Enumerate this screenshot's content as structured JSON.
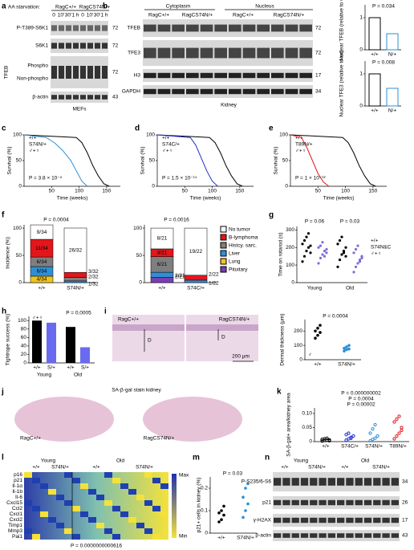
{
  "panel_labels": [
    "a",
    "b",
    "c",
    "d",
    "e",
    "f",
    "g",
    "h",
    "i",
    "j",
    "k",
    "l",
    "m",
    "n"
  ],
  "a": {
    "starvation": "AA starvation:",
    "groups": [
      "RagC+/+",
      "RagCS74N/+"
    ],
    "times": [
      "0",
      "10'",
      "30'",
      "1 h",
      "0",
      "10'",
      "30'",
      "1 h"
    ],
    "rows": [
      "P-T389-S6K1",
      "S6K1",
      "TFEB",
      "β-actin"
    ],
    "bands": [
      "Phospho",
      "Non-phospho"
    ],
    "mw": [
      "72",
      "72",
      "72",
      "43"
    ],
    "cell": "MEFs"
  },
  "b": {
    "fractions": [
      "Cytoplasm",
      "Nucleus"
    ],
    "groups": [
      "RagC+/+",
      "RagCS74N/+",
      "RagC+/+",
      "RagCS74N/+"
    ],
    "rows": [
      "TFEB",
      "TFE3",
      "H3",
      "GAPDH"
    ],
    "mw": [
      "72",
      "72",
      "17",
      "34"
    ],
    "tissue": "Kidney",
    "charts": [
      {
        "type": "bar",
        "y_label": "Nuclear TFEB (relative to wt)",
        "p": "P = 0.034",
        "categories": [
          "+/+",
          "N/+"
        ],
        "values": [
          1.0,
          0.5
        ],
        "colors": [
          "#000000",
          "#2b8fd6"
        ],
        "ylim": [
          0,
          1.4
        ],
        "yticks": [
          0,
          1
        ]
      },
      {
        "type": "bar",
        "y_label": "Nuclear TFE3 (relative to wt)",
        "p": "P = 0.008",
        "categories": [
          "+/+",
          "N/+"
        ],
        "values": [
          1.0,
          0.55
        ],
        "colors": [
          "#000000",
          "#2b8fd6"
        ],
        "ylim": [
          0,
          1.4
        ],
        "yticks": [
          0,
          1
        ]
      }
    ]
  },
  "survival": [
    {
      "type": "line",
      "y_label": "Survival (%)",
      "x_label": "Time (weeks)",
      "sex": "♂+♀",
      "p": "P = 3.8 × 10⁻⁵",
      "xlim": [
        0,
        175
      ],
      "xticks": [
        50,
        100,
        150
      ],
      "ylim": [
        0,
        100
      ],
      "yticks": [
        0,
        50,
        100
      ],
      "series": [
        {
          "name": "+/+",
          "color": "#000000",
          "x": [
            0,
            95,
            105,
            115,
            125,
            135,
            145,
            155
          ],
          "values": [
            100,
            95,
            85,
            65,
            40,
            20,
            5,
            0
          ]
        },
        {
          "name": "S74N/+",
          "color": "#2b8fd6",
          "x": [
            0,
            40,
            55,
            70,
            85,
            95,
            105,
            115
          ],
          "values": [
            100,
            95,
            85,
            70,
            50,
            30,
            10,
            0
          ]
        }
      ]
    },
    {
      "type": "line",
      "y_label": "Survival (%)",
      "x_label": "Time (weeks)",
      "sex": "♂+♀",
      "p": "P = 1.5 × 10⁻¹⁴",
      "xlim": [
        0,
        175
      ],
      "xticks": [
        50,
        100,
        150
      ],
      "ylim": [
        0,
        100
      ],
      "yticks": [
        0,
        50,
        100
      ],
      "series": [
        {
          "name": "+/+",
          "color": "#000000",
          "x": [
            0,
            95,
            105,
            115,
            125,
            135,
            145,
            155
          ],
          "values": [
            100,
            95,
            85,
            65,
            40,
            20,
            5,
            0
          ]
        },
        {
          "name": "S74C/+",
          "color": "#1f2fd0",
          "x": [
            0,
            60,
            70,
            80,
            90,
            100,
            110
          ],
          "values": [
            100,
            95,
            80,
            55,
            30,
            10,
            0
          ]
        }
      ]
    },
    {
      "type": "line",
      "y_label": "Survival (%)",
      "x_label": "Time (weeks)",
      "sex": "♂+♀",
      "p": "P = 1 × 10⁻¹²",
      "xlim": [
        0,
        175
      ],
      "xticks": [
        50,
        100,
        150
      ],
      "ylim": [
        0,
        100
      ],
      "yticks": [
        0,
        50,
        100
      ],
      "series": [
        {
          "name": "+/+",
          "color": "#000000",
          "x": [
            0,
            95,
            105,
            115,
            125,
            135,
            145,
            155
          ],
          "values": [
            100,
            95,
            85,
            65,
            40,
            20,
            5,
            0
          ]
        },
        {
          "name": "T89N/+",
          "color": "#e3161b",
          "x": [
            0,
            20,
            30,
            40,
            50,
            60,
            70
          ],
          "values": [
            100,
            95,
            75,
            50,
            25,
            8,
            0
          ]
        }
      ]
    }
  ],
  "f": {
    "y_label": "Incidence (%)",
    "charts": [
      {
        "type": "stacked-bar",
        "p": "P = 0.0004",
        "categories": [
          "+/+",
          "S74N/+"
        ],
        "ylim": [
          0,
          106
        ],
        "yticks": [
          0,
          50,
          100
        ],
        "series": [
          {
            "color": "#ffffff",
            "values": [
              26.5,
              81.3
            ],
            "value_labels": [
              "9/34",
              "26/32"
            ]
          },
          {
            "color": "#e3161b",
            "values": [
              32.4,
              9.4
            ],
            "value_labels": [
              "11/34",
              "3/32"
            ]
          },
          {
            "color": "#7f7f7f",
            "values": [
              17.6,
              6.3
            ],
            "value_labels": [
              "6/34",
              "2/32"
            ]
          },
          {
            "color": "#2f8fd6",
            "values": [
              17.6,
              3.1
            ],
            "value_labels": [
              "6/34",
              "1/32"
            ]
          },
          {
            "color": "#f2c418",
            "values": [
              11.8,
              null
            ],
            "value_labels": [
              "4/34",
              null
            ]
          },
          {
            "color": "#7a3fb0",
            "values": [
              null,
              null
            ],
            "value_labels": [
              null,
              null
            ]
          }
        ]
      },
      {
        "type": "stacked-bar",
        "p": "P = 0.0016",
        "categories": [
          "+/+",
          "S74C/+"
        ],
        "ylim": [
          0,
          106
        ],
        "yticks": [
          0,
          50,
          100
        ],
        "series": [
          {
            "name": "No tumor",
            "color": "#ffffff",
            "values": [
              38.1,
              86.4
            ],
            "value_labels": [
              "8/21",
              "19/22"
            ]
          },
          {
            "name": "B-lymphoma",
            "color": "#e3161b",
            "values": [
              14.3,
              9.1
            ],
            "value_labels": [
              "3/21",
              "2/22"
            ]
          },
          {
            "name": "Histcy. sarc.",
            "color": "#7f7f7f",
            "values": [
              28.6,
              null
            ],
            "value_labels": [
              "6/21",
              null
            ]
          },
          {
            "name": "Liver",
            "color": "#2f8fd6",
            "values": [
              9.5,
              4.5
            ],
            "value_labels": [
              "2/21",
              "1/22"
            ]
          },
          {
            "name": "Lung",
            "color": "#f2c418",
            "values": [
              null,
              null
            ],
            "value_labels": [
              null,
              null
            ]
          },
          {
            "name": "Pituitary",
            "color": "#7a3fb0",
            "values": [
              9.5,
              null
            ],
            "value_labels": [
              "2/21",
              null
            ]
          }
        ]
      }
    ]
  },
  "g": {
    "type": "scatter",
    "y_label": "Time on rotarod (s)",
    "p": [
      "P = 0.06",
      "P = 0.03"
    ],
    "sex": "♂+♀",
    "categories": [
      "Young",
      "Old"
    ],
    "ylim": [
      0,
      320
    ],
    "yticks": [
      0,
      100,
      200,
      300
    ],
    "series": [
      {
        "name": "+/+",
        "color": "#000000",
        "values": [
          [
            120,
            150,
            180,
            200,
            210,
            220,
            240,
            260,
            280,
            170
          ],
          [
            90,
            130,
            160,
            180,
            200,
            220,
            240,
            260,
            170,
            150
          ]
        ]
      },
      {
        "name": "S74N&C",
        "color": "#7b6fd6",
        "values": [
          [
            110,
            140,
            160,
            180,
            190,
            200,
            210,
            230,
            150,
            170
          ],
          [
            60,
            90,
            110,
            130,
            150,
            170,
            190,
            210,
            120,
            140
          ]
        ]
      }
    ]
  },
  "h": {
    "type": "bar",
    "y_label": "Tightrope success (%)",
    "p": "P = 0.0005",
    "sex": "♂+♀",
    "categories": [
      "Young",
      "Old"
    ],
    "genotypes": [
      "+/+",
      "S/+",
      "+/+",
      "S/+"
    ],
    "values": [
      100,
      95,
      85,
      37
    ],
    "colors": [
      "#000000",
      "#6a6af0",
      "#000000",
      "#6a6af0"
    ],
    "ylim": [
      0,
      110
    ],
    "yticks": [
      0,
      20,
      40,
      60,
      80,
      100
    ]
  },
  "i": {
    "image_labels": [
      "RagC+/+",
      "RagCS74N/+"
    ],
    "markers": [
      "D",
      "D"
    ],
    "scale_bar": "200 μm",
    "chart": {
      "type": "scatter",
      "y_label": "Dermal thickness (μm)",
      "p": "P = 0.0004",
      "sex": "♂",
      "categories": [
        "+/+",
        "S74N/+"
      ],
      "colors": [
        "#000000",
        "#2b8fd6"
      ],
      "ylim": [
        0,
        280
      ],
      "yticks": [
        0,
        100,
        200
      ],
      "values": [
        [
          150,
          170,
          190,
          200,
          220,
          240
        ],
        [
          60,
          70,
          75,
          80,
          90,
          100
        ]
      ]
    }
  },
  "j": {
    "title": "SA-β-gal stain kidney",
    "labels": [
      "RagC+/+",
      "RagCS74N/+"
    ]
  },
  "k": {
    "type": "scatter",
    "y_label": "SA-β-gal+ area/kidney area",
    "p": [
      "P = 0.000000002",
      "P = 0.0004",
      "P = 0.00002"
    ],
    "categories": [
      "+/+",
      "S74C/+",
      "S74N/+",
      "T89N/+"
    ],
    "colors": [
      "#000000",
      "#1f2fd0",
      "#2b8fd6",
      "#e3161b"
    ],
    "ylim": [
      0,
      0.12
    ],
    "yticks": [
      0,
      {
        "value": 0.05,
        "label": "0.05"
      },
      {
        "value": 0.1,
        "label": "0.10"
      }
    ],
    "values": [
      [
        0.002,
        0.004,
        0.005,
        0.006,
        0.008,
        0.01,
        0.012,
        0.003
      ],
      [
        0.005,
        0.01,
        0.015,
        0.02,
        0.025,
        0.03,
        0.012
      ],
      [
        0.003,
        0.008,
        0.012,
        0.02,
        0.03,
        0.045,
        0.06
      ],
      [
        0.01,
        0.02,
        0.03,
        0.05,
        0.07,
        0.08,
        0.09,
        0.04
      ]
    ]
  },
  "l": {
    "ages": [
      "Young",
      "Old"
    ],
    "genotypes": [
      "+/+",
      "S74N/+",
      "+/+",
      "S74N/+"
    ],
    "genes": [
      "p16",
      "p21",
      "Il-1α",
      "Il-1b",
      "Il-6",
      "Cxcl15",
      "Ccl2",
      "Cxcl1",
      "Cxcl2",
      "Timp1",
      "Mmp3",
      "Pai1"
    ],
    "scale": [
      "Max",
      "Min"
    ],
    "p": "P = 0.0000000000616"
  },
  "m": {
    "type": "scatter",
    "y_label": "p21+ cells in kidney (%)",
    "p": "P = 0.03",
    "categories": [
      "+/+",
      "S74N/+"
    ],
    "colors": [
      "#000000",
      "#2b8fd6"
    ],
    "ylim": [
      0,
      0.25
    ],
    "yticks": [
      0,
      0.1,
      0.2
    ],
    "values": [
      [
        0.05,
        0.06,
        0.08,
        0.09,
        0.1,
        0.12
      ],
      [
        0.07,
        0.1,
        0.13,
        0.16,
        0.2,
        0.22
      ]
    ]
  },
  "n": {
    "ages": [
      "Young",
      "Old"
    ],
    "genotypes": [
      "+/+",
      "S74N/+",
      "+/+",
      "S74N/+"
    ],
    "rows": [
      "P-S235/6-S6",
      "p21",
      "γ-H2AX",
      "β-actin"
    ],
    "mw": [
      "34",
      "26",
      "17",
      "43"
    ]
  }
}
